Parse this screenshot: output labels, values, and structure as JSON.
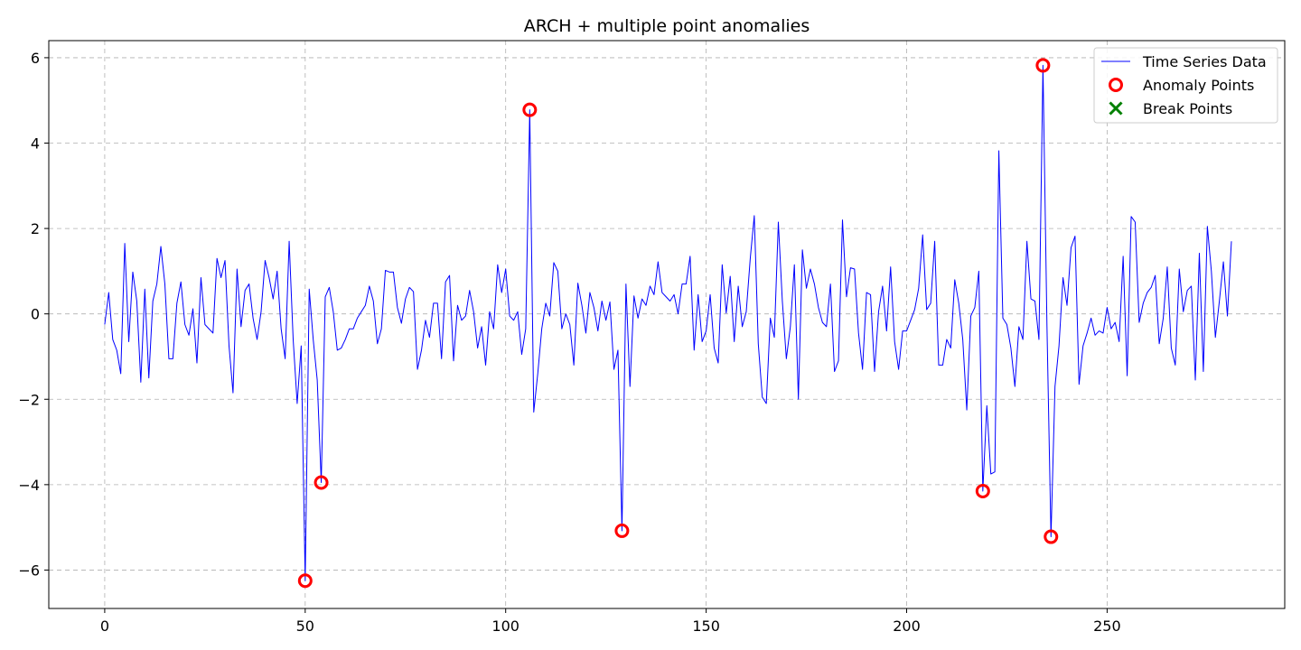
{
  "chart_data": {
    "type": "line",
    "title": "ARCH + multiple point anomalies",
    "xlabel": "",
    "ylabel": "",
    "xlim": [
      -13.95,
      294.3
    ],
    "ylim": [
      -6.9,
      6.4
    ],
    "x_ticks": [
      0,
      50,
      100,
      150,
      200,
      250
    ],
    "y_ticks": [
      -6,
      -4,
      -2,
      0,
      2,
      4,
      6
    ],
    "x_tick_labels": [
      "0",
      "50",
      "100",
      "150",
      "200",
      "250"
    ],
    "y_tick_labels": [
      "−6",
      "−4",
      "−2",
      "0",
      "2",
      "4",
      "6"
    ],
    "grid": true,
    "legend_position": "top-right",
    "series": [
      {
        "name": "Time Series Data",
        "color": "#0000ff",
        "marker": "line",
        "x_start": 0,
        "x_step": 1,
        "y": [
          -0.25,
          0.5,
          -0.6,
          -0.85,
          -1.4,
          1.65,
          -0.65,
          0.98,
          0.3,
          -1.6,
          0.58,
          -1.5,
          0.3,
          0.7,
          1.58,
          0.7,
          -1.05,
          -1.05,
          0.25,
          0.75,
          -0.25,
          -0.5,
          0.12,
          -1.15,
          0.85,
          -0.25,
          -0.35,
          -0.45,
          1.3,
          0.85,
          1.25,
          -0.75,
          -1.85,
          1.05,
          -0.3,
          0.55,
          0.7,
          -0.1,
          -0.6,
          0.05,
          1.25,
          0.85,
          0.35,
          1.0,
          -0.35,
          -1.05,
          1.7,
          -0.6,
          -2.1,
          -0.75,
          -6.25,
          0.58,
          -0.6,
          -1.55,
          -3.95,
          0.4,
          0.62,
          0.05,
          -0.85,
          -0.8,
          -0.6,
          -0.35,
          -0.35,
          -0.1,
          0.05,
          0.2,
          0.65,
          0.3,
          -0.7,
          -0.35,
          1.02,
          0.98,
          0.98,
          0.15,
          -0.22,
          0.35,
          0.62,
          0.52,
          -1.3,
          -0.85,
          -0.15,
          -0.55,
          0.25,
          0.25,
          -1.05,
          0.75,
          0.9,
          -1.1,
          0.2,
          -0.15,
          -0.05,
          0.55,
          0.05,
          -0.8,
          -0.3,
          -1.2,
          0.05,
          -0.35,
          1.15,
          0.5,
          1.05,
          -0.05,
          -0.15,
          0.05,
          -0.95,
          -0.35,
          4.78,
          -2.3,
          -1.4,
          -0.35,
          0.25,
          -0.05,
          1.2,
          1.0,
          -0.35,
          0.0,
          -0.25,
          -1.2,
          0.72,
          0.2,
          -0.45,
          0.5,
          0.15,
          -0.4,
          0.3,
          -0.15,
          0.28,
          -1.3,
          -0.85,
          -5.08,
          0.7,
          -1.7,
          0.42,
          -0.1,
          0.35,
          0.2,
          0.65,
          0.45,
          1.22,
          0.5,
          0.4,
          0.3,
          0.45,
          0.0,
          0.7,
          0.7,
          1.35,
          -0.85,
          0.45,
          -0.65,
          -0.4,
          0.45,
          -0.8,
          -1.15,
          1.15,
          0.02,
          0.88,
          -0.65,
          0.65,
          -0.3,
          0.05,
          1.3,
          2.3,
          -0.7,
          -1.95,
          -2.1,
          -0.1,
          -0.55,
          2.15,
          0.3,
          -1.05,
          -0.3,
          1.15,
          -2.0,
          1.5,
          0.6,
          1.05,
          0.7,
          0.15,
          -0.2,
          -0.3,
          0.7,
          -1.35,
          -1.1,
          2.2,
          0.4,
          1.08,
          1.05,
          -0.45,
          -1.3,
          0.5,
          0.45,
          -1.35,
          0.05,
          0.65,
          -0.4,
          1.1,
          -0.65,
          -1.3,
          -0.4,
          -0.4,
          -0.15,
          0.1,
          0.6,
          1.85,
          0.1,
          0.25,
          1.7,
          -1.2,
          -1.2,
          -0.6,
          -0.8,
          0.8,
          0.25,
          -0.6,
          -2.25,
          -0.05,
          0.15,
          1.0,
          -4.15,
          -2.15,
          -3.75,
          -3.7,
          3.82,
          -0.1,
          -0.25,
          -0.8,
          -1.7,
          -0.3,
          -0.6,
          1.7,
          0.35,
          0.3,
          -0.6,
          5.82,
          -0.3,
          -5.22,
          -1.7,
          -0.75,
          0.85,
          0.2,
          1.55,
          1.82,
          -1.65,
          -0.75,
          -0.45,
          -0.1,
          -0.5,
          -0.4,
          -0.45,
          0.15,
          -0.35,
          -0.2,
          -0.65,
          1.35,
          -1.45,
          2.28,
          2.15,
          -0.2,
          0.25,
          0.5,
          0.62,
          0.9,
          -0.7,
          -0.1,
          1.1,
          -0.8,
          -1.2,
          1.05,
          0.05,
          0.55,
          0.65,
          -1.55,
          1.42,
          -1.35,
          2.05,
          1.0,
          -0.55,
          0.3,
          1.22,
          -0.05,
          1.7
        ]
      },
      {
        "name": "Anomaly Points",
        "color": "#ff0000",
        "marker": "circle",
        "points": [
          {
            "x": 50,
            "y": -6.25
          },
          {
            "x": 54,
            "y": -3.95
          },
          {
            "x": 106,
            "y": 4.78
          },
          {
            "x": 129,
            "y": -5.08
          },
          {
            "x": 219,
            "y": -4.15
          },
          {
            "x": 234,
            "y": 5.82
          },
          {
            "x": 236,
            "y": -5.22
          }
        ]
      },
      {
        "name": "Break Points",
        "color": "#008000",
        "marker": "x",
        "points": []
      }
    ]
  }
}
